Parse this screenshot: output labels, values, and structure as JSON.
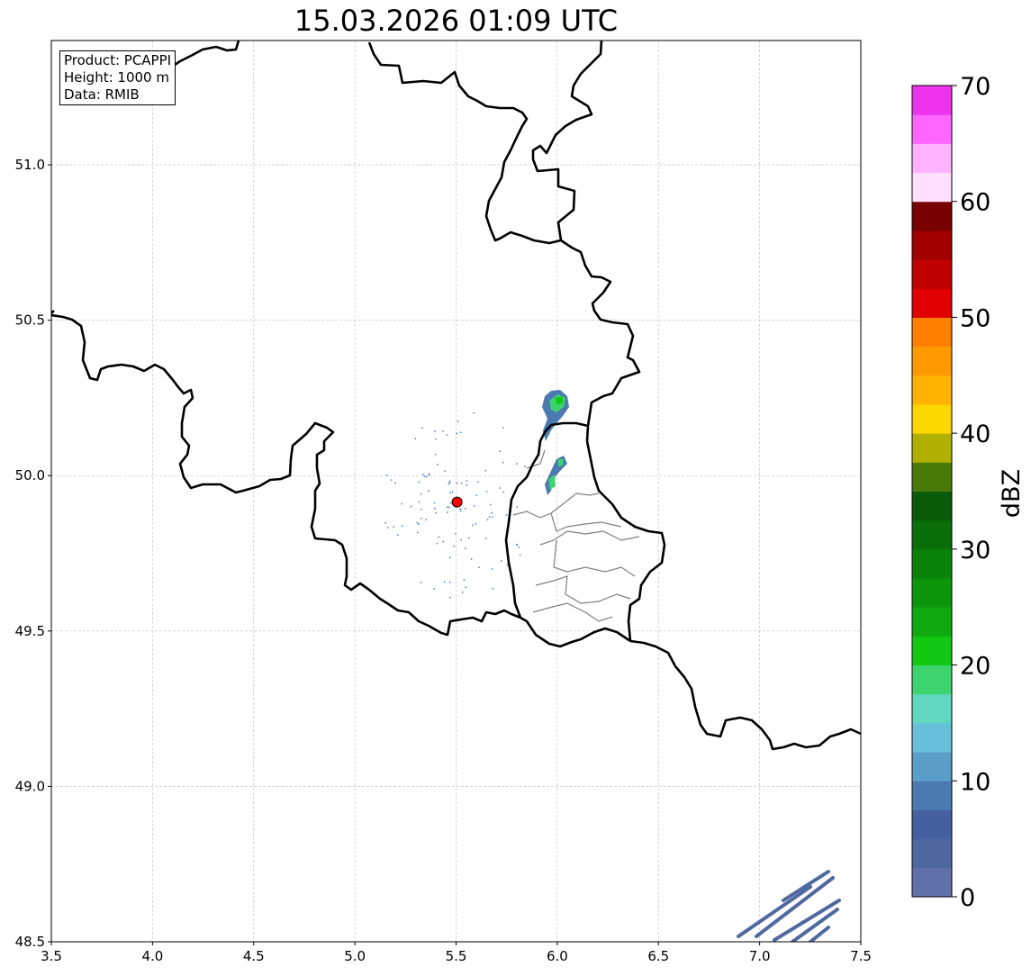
{
  "title": "15.03.2026 01:09 UTC",
  "info_box": {
    "product": "Product: PCAPPI",
    "height": "Height: 1000 m",
    "data": "Data: RMIB"
  },
  "chart_data": {
    "type": "heatmap",
    "title": "15.03.2026 01:09 UTC",
    "xlim": [
      3.5,
      7.5
    ],
    "ylim": [
      48.5,
      51.4
    ],
    "x_ticks": [
      "3.5",
      "4.0",
      "4.5",
      "5.0",
      "5.5",
      "6.0",
      "6.5",
      "7.0",
      "7.5"
    ],
    "y_ticks": [
      "48.5",
      "49.0",
      "49.5",
      "50.0",
      "50.5",
      "51.0"
    ],
    "grid": true,
    "radar_site": {
      "lon": 5.505,
      "lat": 49.915,
      "color": "#ff0000"
    },
    "colorbar": {
      "label": "dBZ",
      "min": 0,
      "max": 70,
      "step": 2.5,
      "tick_labels": [
        "0",
        "10",
        "20",
        "30",
        "40",
        "50",
        "60",
        "70"
      ],
      "colors": [
        "#6070a8",
        "#5068a0",
        "#4460a0",
        "#4a7ab0",
        "#5a9ec8",
        "#66c0dc",
        "#60d8c0",
        "#3dd470",
        "#12c812",
        "#10aa10",
        "#0c960c",
        "#0a820a",
        "#0a6e0a",
        "#0a5a0a",
        "#4a7a0a",
        "#b0b000",
        "#ffd700",
        "#ffb300",
        "#ff9900",
        "#ff7f00",
        "#e00000",
        "#c00000",
        "#a00000",
        "#780000",
        "#ffe0ff",
        "#ffb3ff",
        "#ff66ff",
        "#ee33ee"
      ]
    }
  }
}
